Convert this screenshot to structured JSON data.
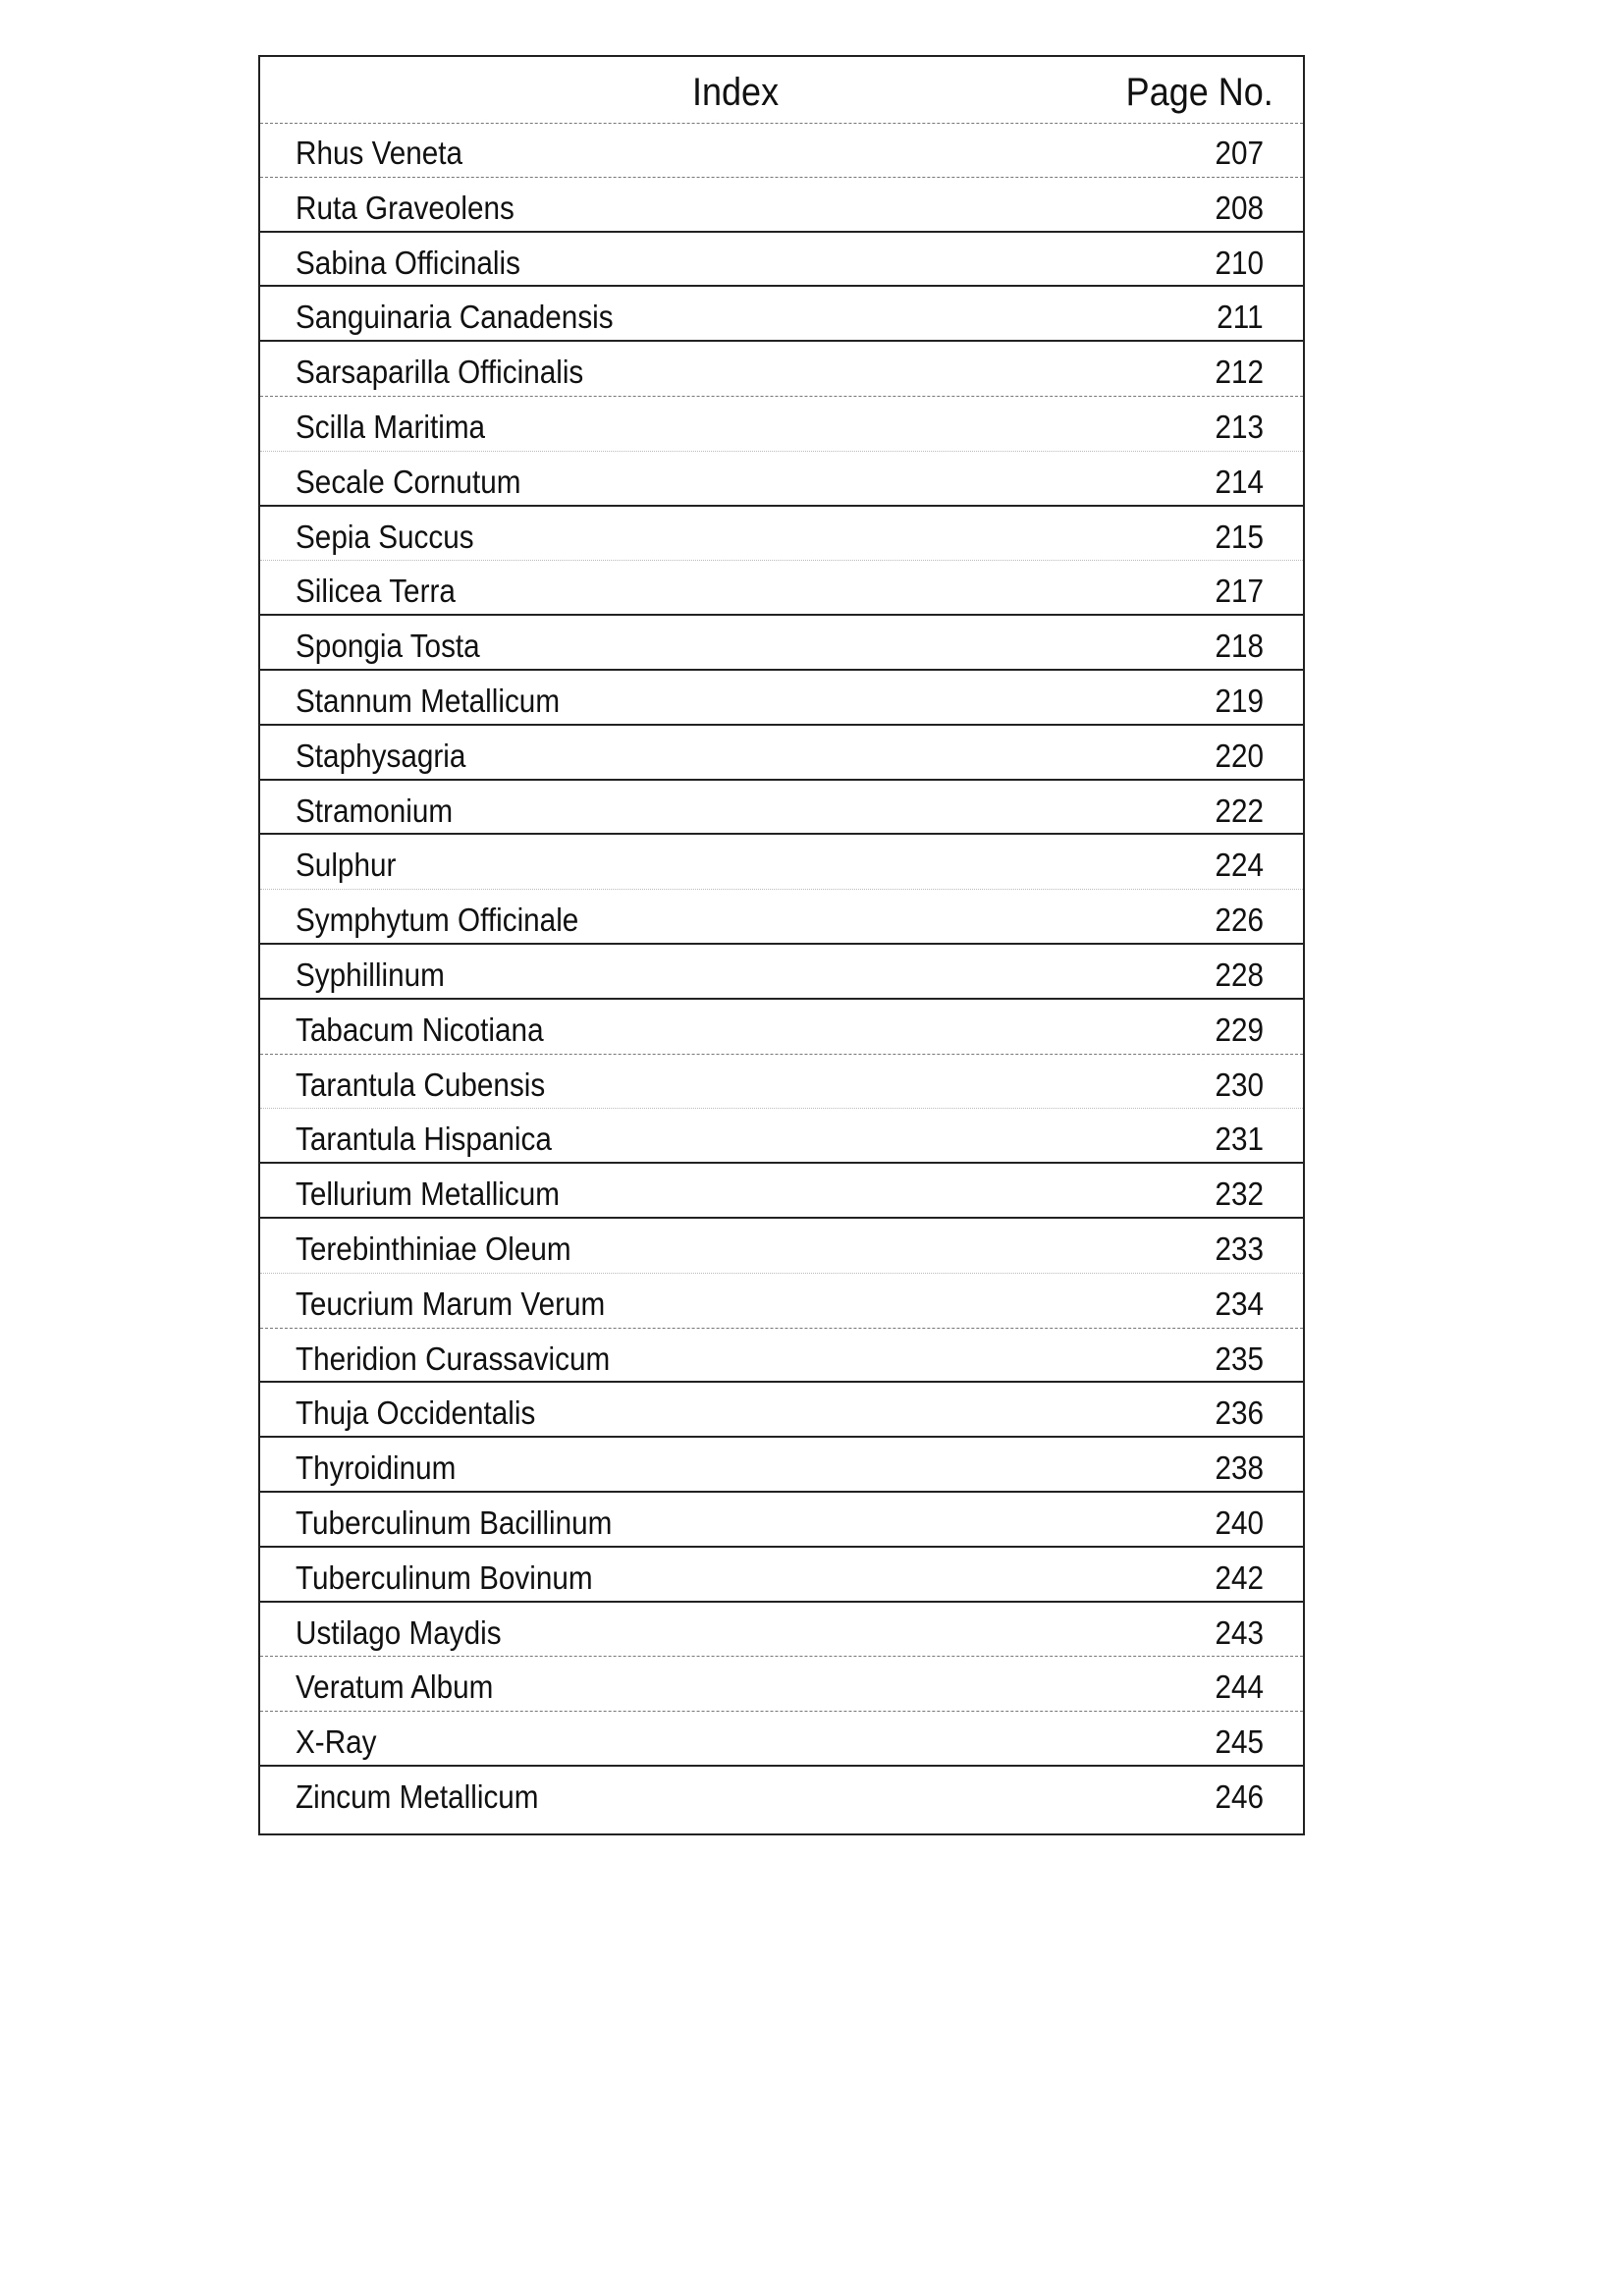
{
  "header": {
    "index_label": "Index",
    "page_label": "Page No."
  },
  "entries": [
    {
      "name": "Rhus Veneta",
      "page": "207"
    },
    {
      "name": "Ruta Graveolens",
      "page": "208"
    },
    {
      "name": "Sabina  Officinalis",
      "page": "210"
    },
    {
      "name": "Sanguinaria  Canadensis",
      "page": "211"
    },
    {
      "name": "Sarsaparilla  Officinalis",
      "page": "212"
    },
    {
      "name": "Scilla Maritima",
      "page": "213"
    },
    {
      "name": "Secale Cornutum",
      "page": "214"
    },
    {
      "name": "Sepia Succus",
      "page": "215"
    },
    {
      "name": "Silicea  Terra",
      "page": "217"
    },
    {
      "name": "Spongia Tosta",
      "page": "218"
    },
    {
      "name": "Stannum Metallicum",
      "page": "219"
    },
    {
      "name": "Staphysagria",
      "page": "220"
    },
    {
      "name": "Stramonium",
      "page": "222"
    },
    {
      "name": "Sulphur",
      "page": "224"
    },
    {
      "name": "Symphytum Officinale",
      "page": "226"
    },
    {
      "name": "Syphillinum",
      "page": "228"
    },
    {
      "name": "Tabacum  Nicotiana",
      "page": "229"
    },
    {
      "name": "Tarantula Cubensis",
      "page": "230"
    },
    {
      "name": "Tarantula Hispanica",
      "page": "231"
    },
    {
      "name": "Tellurium Metallicum",
      "page": "232"
    },
    {
      "name": "Terebinthiniae Oleum",
      "page": "233"
    },
    {
      "name": "Teucrium  Marum  Verum",
      "page": "234"
    },
    {
      "name": "Theridion Curassavicum",
      "page": "235"
    },
    {
      "name": "Thuja Occidentalis",
      "page": "236"
    },
    {
      "name": "Thyroidinum",
      "page": "238"
    },
    {
      "name": "Tuberculinum  Bacillinum",
      "page": "240"
    },
    {
      "name": "Tuberculinum  Bovinum",
      "page": "242"
    },
    {
      "name": "Ustilago Maydis",
      "page": "243"
    },
    {
      "name": "Veratum  Album",
      "page": "244"
    },
    {
      "name": "X-Ray",
      "page": "245"
    },
    {
      "name": "Zincum Metallicum",
      "page": "246"
    }
  ]
}
